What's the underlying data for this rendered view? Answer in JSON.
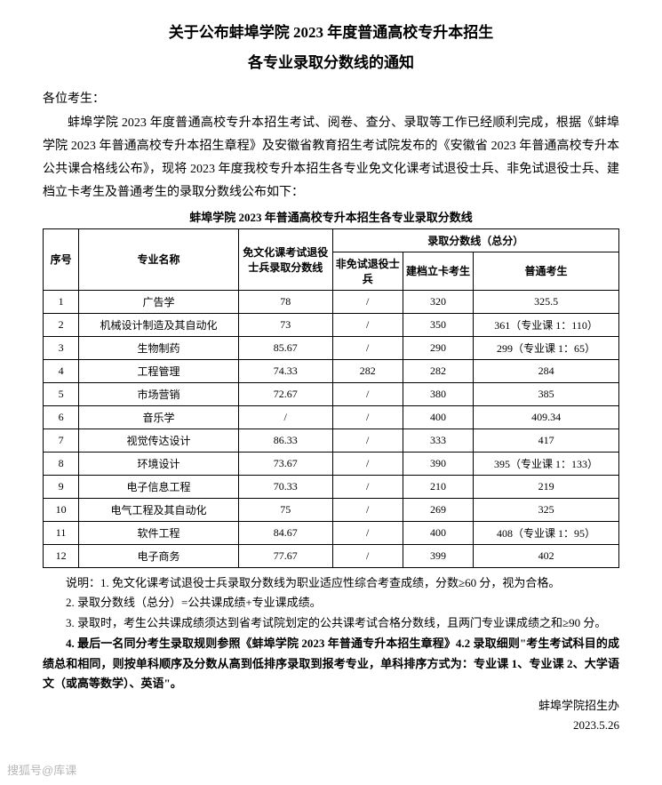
{
  "title_line1": "关于公布蚌埠学院 2023 年度普通高校专升本招生",
  "title_line2": "各专业录取分数线的通知",
  "salutation": "各位考生：",
  "body": "蚌埠学院 2023 年度普通高校专升本招生考试、阅卷、查分、录取等工作已经顺利完成，根据《蚌埠学院 2023 年普通高校专升本招生章程》及安徽省教育招生考试院发布的《安徽省 2023 年普通高校专升本公共课合格线公布》，现将 2023 年度我校专升本招生各专业免文化课考试退役士兵、非免试退役士兵、建档立卡考生及普通考生的录取分数线公布如下：",
  "table_title": "蚌埠学院 2023 年普通高校专升本招生各专业录取分数线",
  "headers": {
    "seq": "序号",
    "major": "专业名称",
    "exempt": "免文化课考试退役士兵录取分数线",
    "score_group": "录取分数线（总分）",
    "non_exempt": "非免试退役士兵",
    "poverty": "建档立卡考生",
    "regular": "普通考生"
  },
  "rows": [
    {
      "seq": "1",
      "major": "广告学",
      "exempt": "78",
      "non_exempt": "/",
      "poverty": "320",
      "regular": "325.5"
    },
    {
      "seq": "2",
      "major": "机械设计制造及其自动化",
      "exempt": "73",
      "non_exempt": "/",
      "poverty": "350",
      "regular": "361（专业课 1：110）"
    },
    {
      "seq": "3",
      "major": "生物制药",
      "exempt": "85.67",
      "non_exempt": "/",
      "poverty": "290",
      "regular": "299（专业课 1：65）"
    },
    {
      "seq": "4",
      "major": "工程管理",
      "exempt": "74.33",
      "non_exempt": "282",
      "poverty": "282",
      "regular": "284"
    },
    {
      "seq": "5",
      "major": "市场营销",
      "exempt": "72.67",
      "non_exempt": "/",
      "poverty": "380",
      "regular": "385"
    },
    {
      "seq": "6",
      "major": "音乐学",
      "exempt": "/",
      "non_exempt": "/",
      "poverty": "400",
      "regular": "409.34"
    },
    {
      "seq": "7",
      "major": "视觉传达设计",
      "exempt": "86.33",
      "non_exempt": "/",
      "poverty": "333",
      "regular": "417"
    },
    {
      "seq": "8",
      "major": "环境设计",
      "exempt": "73.67",
      "non_exempt": "/",
      "poverty": "390",
      "regular": "395（专业课 1：133）"
    },
    {
      "seq": "9",
      "major": "电子信息工程",
      "exempt": "70.33",
      "non_exempt": "/",
      "poverty": "210",
      "regular": "219"
    },
    {
      "seq": "10",
      "major": "电气工程及其自动化",
      "exempt": "75",
      "non_exempt": "/",
      "poverty": "269",
      "regular": "325"
    },
    {
      "seq": "11",
      "major": "软件工程",
      "exempt": "84.67",
      "non_exempt": "/",
      "poverty": "400",
      "regular": "408（专业课 1：95）"
    },
    {
      "seq": "12",
      "major": "电子商务",
      "exempt": "77.67",
      "non_exempt": "/",
      "poverty": "399",
      "regular": "402"
    }
  ],
  "notes": {
    "n1": "说明：1. 免文化课考试退役士兵录取分数线为职业适应性综合考查成绩，分数≥60 分，视为合格。",
    "n2": "2. 录取分数线（总分）=公共课成绩+专业课成绩。",
    "n3": "3. 录取时，考生公共课成绩须达到省考试院划定的公共课考试合格分数线，且两门专业课成绩之和≥90 分。",
    "n4": "4. 最后一名同分考生录取规则参照《蚌埠学院 2023 年普通专升本招生章程》4.2 录取细则\"考生考试科目的成绩总和相同，则按单科顺序及分数从高到低排序录取到报考专业，单科排序方式为：专业课 1、专业课 2、大学语文（或高等数学）、英语\"。"
  },
  "signature_org": "蚌埠学院招生办",
  "signature_date": "2023.5.26",
  "watermark": "搜狐号@库课"
}
